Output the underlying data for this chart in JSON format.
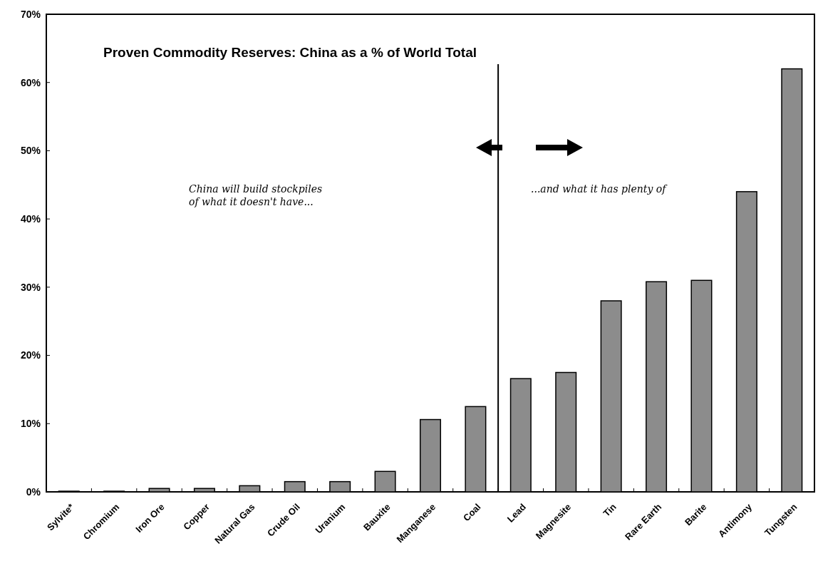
{
  "chart_data": {
    "type": "bar",
    "title": "Proven Commodity Reserves: China as a % of World Total",
    "categories": [
      "Sylvite*",
      "Chromium",
      "Iron Ore",
      "Copper",
      "Natural Gas",
      "Crude Oil",
      "Uranium",
      "Bauxite",
      "Manganese",
      "Coal",
      "Lead",
      "Magnesite",
      "Tin",
      "Rare Earth",
      "Barite",
      "Antimony",
      "Tungsten"
    ],
    "values": [
      0.1,
      0.1,
      0.5,
      0.5,
      0.9,
      1.5,
      1.5,
      3,
      10.6,
      12.5,
      16.6,
      17.5,
      28,
      30.8,
      31,
      44,
      62
    ],
    "color": "#8c8c8c",
    "ylim": [
      0,
      70
    ],
    "yticks": [
      {
        "value": 0,
        "label": "0%"
      },
      {
        "value": 10,
        "label": "10%"
      },
      {
        "value": 20,
        "label": "20%"
      },
      {
        "value": 30,
        "label": "30%"
      },
      {
        "value": 40,
        "label": "40%"
      },
      {
        "value": 50,
        "label": "50%"
      },
      {
        "value": 60,
        "label": "60%"
      },
      {
        "value": 70,
        "label": "70%"
      }
    ],
    "grid": false,
    "annotations": [
      "China will build stockpiles\nof what it doesn't have...",
      "...and what it has plenty of"
    ]
  }
}
